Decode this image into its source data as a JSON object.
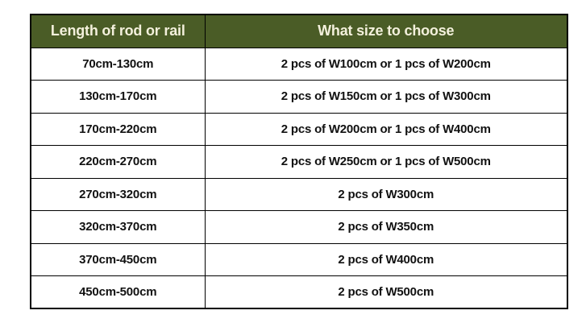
{
  "chart_data": {
    "type": "table",
    "title": "",
    "columns": [
      "Length of rod or rail",
      "What size to choose"
    ],
    "rows": [
      [
        "70cm-130cm",
        "2 pcs of W100cm or 1 pcs of W200cm"
      ],
      [
        "130cm-170cm",
        "2 pcs of W150cm or 1 pcs of W300cm"
      ],
      [
        "170cm-220cm",
        "2 pcs of W200cm or 1 pcs of W400cm"
      ],
      [
        "220cm-270cm",
        "2 pcs of W250cm or 1 pcs of W500cm"
      ],
      [
        "270cm-320cm",
        "2 pcs of W300cm"
      ],
      [
        "320cm-370cm",
        "2 pcs of W350cm"
      ],
      [
        "370cm-450cm",
        "2 pcs of W400cm"
      ],
      [
        "450cm-500cm",
        "2 pcs of W500cm"
      ]
    ],
    "layout": {
      "header_bg": "#4a5c26",
      "header_text_color": "#f3f0dc",
      "body_text_color": "#111111",
      "border_color": "#000000",
      "grid": true,
      "background": "#ffffff"
    }
  }
}
